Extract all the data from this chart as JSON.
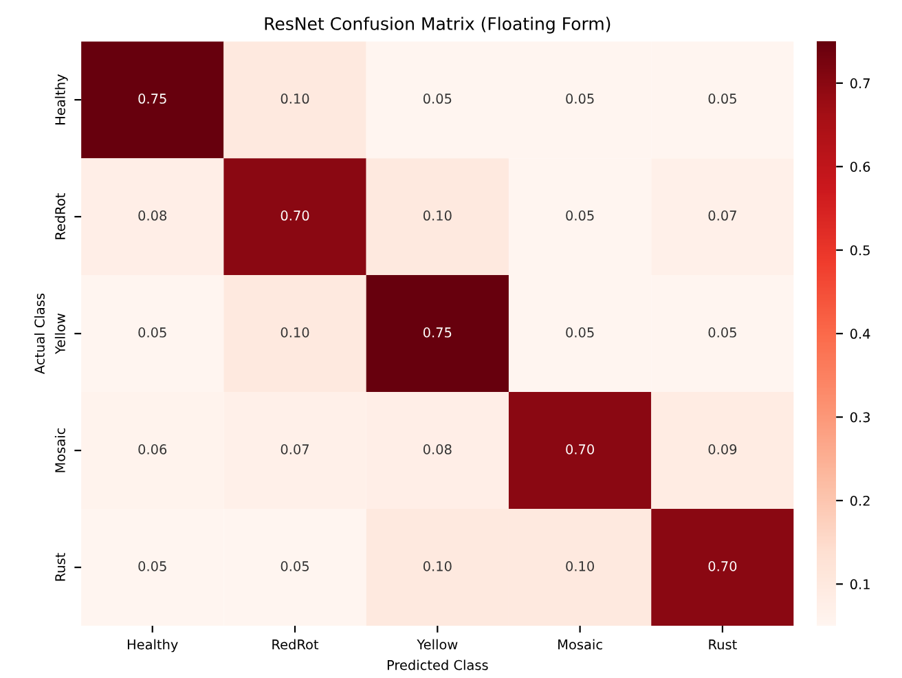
{
  "chart_data": {
    "type": "heatmap",
    "title": "ResNet Confusion Matrix (Floating Form)",
    "xlabel": "Predicted Class",
    "ylabel": "Actual Class",
    "categories": [
      "Healthy",
      "RedRot",
      "Yellow",
      "Mosaic",
      "Rust"
    ],
    "y_categories": [
      "Healthy",
      "RedRot",
      "Yellow",
      "Mosaic",
      "Rust"
    ],
    "cells": [
      [
        0.75,
        0.1,
        0.05,
        0.05,
        0.05
      ],
      [
        0.08,
        0.7,
        0.1,
        0.05,
        0.07
      ],
      [
        0.05,
        0.1,
        0.75,
        0.05,
        0.05
      ],
      [
        0.06,
        0.07,
        0.08,
        0.7,
        0.09
      ],
      [
        0.05,
        0.05,
        0.1,
        0.1,
        0.7
      ]
    ],
    "cell_labels": [
      [
        "0.75",
        "0.10",
        "0.05",
        "0.05",
        "0.05"
      ],
      [
        "0.08",
        "0.70",
        "0.10",
        "0.05",
        "0.07"
      ],
      [
        "0.05",
        "0.10",
        "0.75",
        "0.05",
        "0.05"
      ],
      [
        "0.06",
        "0.07",
        "0.08",
        "0.70",
        "0.09"
      ],
      [
        "0.05",
        "0.05",
        "0.10",
        "0.10",
        "0.70"
      ]
    ],
    "clim": [
      0.05,
      0.75
    ],
    "cticks": [
      0.1,
      0.2,
      0.3,
      0.4,
      0.5,
      0.6,
      0.7
    ]
  }
}
